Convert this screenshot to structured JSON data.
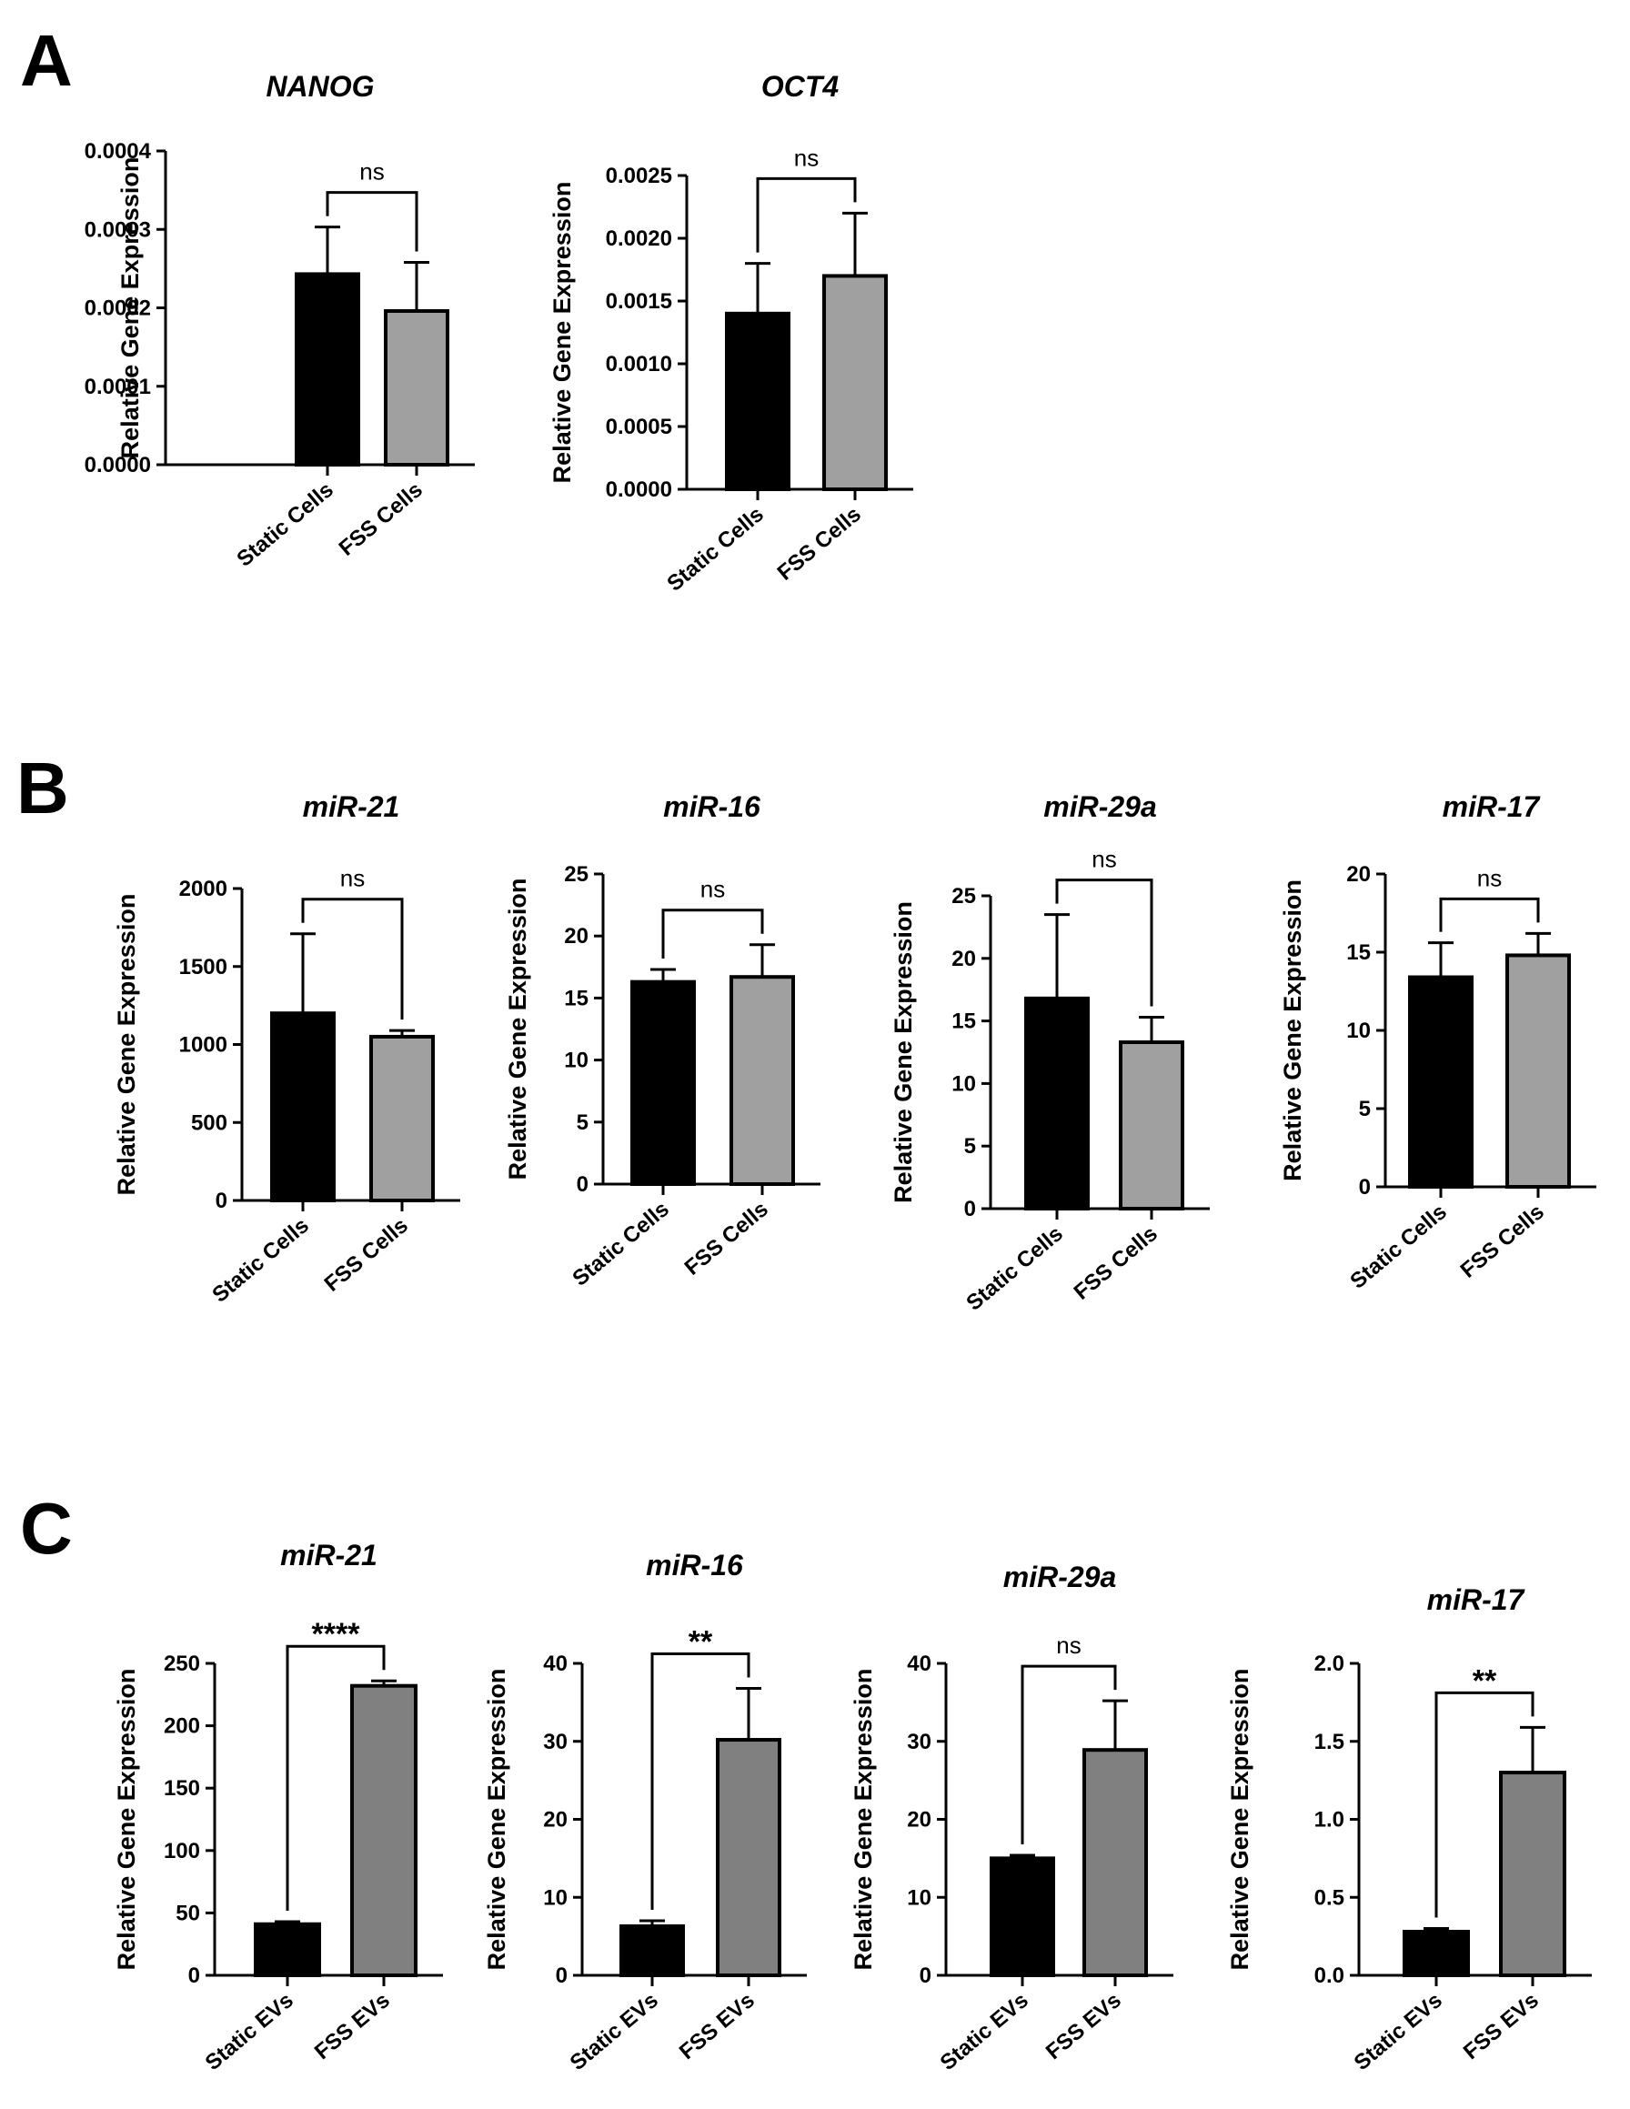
{
  "panels": [
    {
      "letter": "A",
      "fig_title": "A"
    },
    {
      "letter": "B",
      "fig_title": "B"
    },
    {
      "letter": "C",
      "fig_title": "C"
    }
  ],
  "colors": {
    "static": "#000000",
    "fss_cells": "#a0a0a0",
    "fss_evs": "#808080",
    "axis": "#000000"
  },
  "chart_data": [
    {
      "panel": "A",
      "type": "bar",
      "title": "NANOG",
      "ylabel": "Relative Gene Expression",
      "categories": [
        "Static Cells",
        "FSS Cells"
      ],
      "values": [
        0.000243,
        0.000196
      ],
      "errors": [
        6e-05,
        6.2e-05
      ],
      "ylim": [
        0,
        0.0004
      ],
      "yticks": [
        0,
        0.0001,
        0.0002,
        0.0003,
        0.0004
      ],
      "ytick_labels": [
        "0.0000",
        "0.0001",
        "0.0002",
        "0.0003",
        "0.0004"
      ],
      "significance": "ns"
    },
    {
      "panel": "A",
      "type": "bar",
      "title": "OCT4",
      "ylabel": "Relative Gene Expression",
      "categories": [
        "Static Cells",
        "FSS Cells"
      ],
      "values": [
        0.0014,
        0.0017
      ],
      "errors": [
        0.0004,
        0.0005
      ],
      "ylim": [
        0,
        0.0025
      ],
      "yticks": [
        0,
        0.0005,
        0.001,
        0.0015,
        0.002,
        0.0025
      ],
      "ytick_labels": [
        "0.0000",
        "0.0005",
        "0.0010",
        "0.0015",
        "0.0020",
        "0.0025"
      ],
      "significance": "ns"
    },
    {
      "panel": "B",
      "type": "bar",
      "title": "miR-21",
      "ylabel": "Relative Gene Expression",
      "categories": [
        "Static Cells",
        "FSS Cells"
      ],
      "values": [
        1200,
        1050
      ],
      "errors": [
        510,
        40
      ],
      "ylim": [
        0,
        2000
      ],
      "yticks": [
        0,
        500,
        1000,
        1500,
        2000
      ],
      "ytick_labels": [
        "0",
        "500",
        "1000",
        "1500",
        "2000"
      ],
      "significance": "ns"
    },
    {
      "panel": "B",
      "type": "bar",
      "title": "miR-16",
      "ylabel": "Relative Gene Expression",
      "categories": [
        "Static Cells",
        "FSS Cells"
      ],
      "values": [
        16.3,
        16.7
      ],
      "errors": [
        1.0,
        2.6
      ],
      "ylim": [
        0,
        25
      ],
      "yticks": [
        0,
        5,
        10,
        15,
        20,
        25
      ],
      "ytick_labels": [
        "0",
        "5",
        "10",
        "15",
        "20",
        "25"
      ],
      "significance": "ns"
    },
    {
      "panel": "B",
      "type": "bar",
      "title": "miR-29a",
      "ylabel": "Relative Gene Expression",
      "categories": [
        "Static Cells",
        "FSS Cells"
      ],
      "values": [
        16.8,
        13.3
      ],
      "errors": [
        6.7,
        2.0
      ],
      "ylim": [
        0,
        25
      ],
      "yticks": [
        0,
        5,
        10,
        15,
        20,
        25
      ],
      "ytick_labels": [
        "0",
        "5",
        "10",
        "15",
        "20",
        "25"
      ],
      "significance": "ns"
    },
    {
      "panel": "B",
      "type": "bar",
      "title": "miR-17",
      "ylabel": "Relative Gene Expression",
      "categories": [
        "Static Cells",
        "FSS Cells"
      ],
      "values": [
        13.4,
        14.8
      ],
      "errors": [
        2.2,
        1.4
      ],
      "ylim": [
        0,
        20
      ],
      "yticks": [
        0,
        5,
        10,
        15,
        20
      ],
      "ytick_labels": [
        "0",
        "5",
        "10",
        "15",
        "20"
      ],
      "significance": "ns"
    },
    {
      "panel": "C",
      "type": "bar",
      "title": "miR-21",
      "ylabel": "Relative Gene Expression",
      "categories": [
        "Static EVs",
        "FSS EVs"
      ],
      "values": [
        41,
        232
      ],
      "errors": [
        2,
        4
      ],
      "ylim": [
        0,
        250
      ],
      "yticks": [
        0,
        50,
        100,
        150,
        200,
        250
      ],
      "ytick_labels": [
        "0",
        "50",
        "100",
        "150",
        "200",
        "250"
      ],
      "significance": "****"
    },
    {
      "panel": "C",
      "type": "bar",
      "title": "miR-16",
      "ylabel": "Relative Gene Expression",
      "categories": [
        "Static EVs",
        "FSS EVs"
      ],
      "values": [
        6.3,
        30.2
      ],
      "errors": [
        0.7,
        6.6
      ],
      "ylim": [
        0,
        40
      ],
      "yticks": [
        0,
        10,
        20,
        30,
        40
      ],
      "ytick_labels": [
        "0",
        "10",
        "20",
        "30",
        "40"
      ],
      "significance": "**"
    },
    {
      "panel": "C",
      "type": "bar",
      "title": "miR-29a",
      "ylabel": "Relative Gene Expression",
      "categories": [
        "Static EVs",
        "FSS EVs"
      ],
      "values": [
        15.0,
        28.9
      ],
      "errors": [
        0.4,
        6.3
      ],
      "ylim": [
        0,
        40
      ],
      "yticks": [
        0,
        10,
        20,
        30,
        40
      ],
      "ytick_labels": [
        "0",
        "10",
        "20",
        "30",
        "40"
      ],
      "significance": "ns"
    },
    {
      "panel": "C",
      "type": "bar",
      "title": "miR-17",
      "ylabel": "Relative Gene Expression",
      "categories": [
        "Static EVs",
        "FSS EVs"
      ],
      "values": [
        0.28,
        1.3
      ],
      "errors": [
        0.02,
        0.29
      ],
      "ylim": [
        0,
        2.0
      ],
      "yticks": [
        0,
        0.5,
        1.0,
        1.5,
        2.0
      ],
      "ytick_labels": [
        "0.0",
        "0.5",
        "1.0",
        "1.5",
        "2.0"
      ],
      "significance": "**"
    }
  ]
}
